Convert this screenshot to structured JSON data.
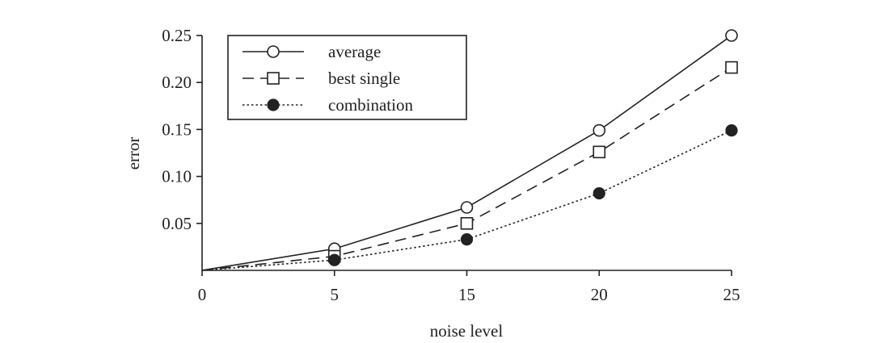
{
  "chart_data": {
    "type": "line",
    "xlabel": "noise level",
    "ylabel": "error",
    "x_ticks": [
      "0",
      "5",
      "15",
      "20",
      "25"
    ],
    "y_ticks": [
      "0.05",
      "0.10",
      "0.15",
      "0.20",
      "0.25"
    ],
    "ylim": [
      0,
      0.25
    ],
    "grid": false,
    "legend_position": "top-left",
    "categories": [
      "0",
      "5",
      "15",
      "20",
      "25"
    ],
    "series": [
      {
        "name": "average",
        "values": [
          0,
          0.023,
          0.067,
          0.149,
          0.25
        ],
        "marker": "open-circle",
        "line": "solid"
      },
      {
        "name": "best single",
        "values": [
          0,
          0.015,
          0.05,
          0.126,
          0.216
        ],
        "marker": "open-square",
        "line": "dashed"
      },
      {
        "name": "combination",
        "values": [
          0,
          0.011,
          0.033,
          0.082,
          0.149
        ],
        "marker": "filled-circle",
        "line": "dotted"
      }
    ]
  }
}
